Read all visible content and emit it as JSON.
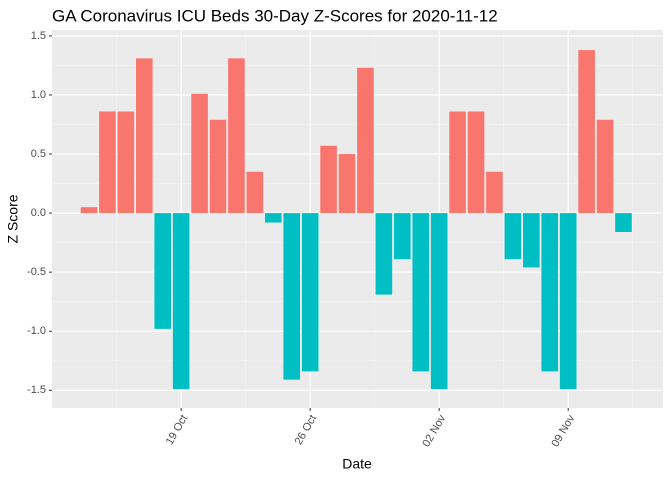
{
  "chart_data": {
    "type": "bar",
    "title": "GA Coronavirus ICU Beds 30-Day Z-Scores for 2020-11-12",
    "x_label": "Date",
    "y_label": "Z Score",
    "categories": [
      null,
      null,
      null,
      null,
      null,
      "19 Oct",
      null,
      null,
      null,
      null,
      null,
      null,
      "26 Oct",
      null,
      null,
      null,
      null,
      null,
      null,
      "02 Nov",
      null,
      null,
      null,
      null,
      null,
      null,
      "09 Nov",
      null,
      null,
      null
    ],
    "values": [
      0.05,
      0.86,
      0.86,
      1.31,
      -0.98,
      -1.49,
      1.01,
      0.79,
      1.31,
      0.35,
      -0.08,
      -1.41,
      -1.34,
      0.57,
      0.5,
      1.23,
      -0.69,
      -0.39,
      -1.34,
      -1.49,
      0.86,
      0.86,
      0.35,
      -0.39,
      -0.46,
      -1.34,
      -1.49,
      1.38,
      0.79,
      -0.16
    ],
    "color_positive": "#F8766D",
    "color_negative": "#00BFC4",
    "ylim": [
      -1.65,
      1.55
    ],
    "yticks": [
      -1.5,
      {
        "value": -1.0,
        "label": "-1.0"
      },
      -0.5,
      {
        "value": 0.0,
        "label": "0.0"
      },
      0.5,
      {
        "value": 1.0,
        "label": "1.0"
      },
      1.5
    ],
    "grid": true
  }
}
